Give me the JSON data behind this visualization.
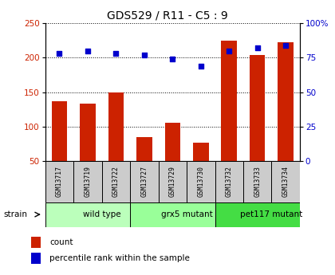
{
  "title": "GDS529 / R11 - C5 : 9",
  "samples": [
    "GSM13717",
    "GSM13719",
    "GSM13722",
    "GSM13727",
    "GSM13729",
    "GSM13730",
    "GSM13732",
    "GSM13733",
    "GSM13734"
  ],
  "counts": [
    137,
    133,
    150,
    85,
    105,
    76,
    225,
    204,
    222
  ],
  "percentile_ranks": [
    78,
    80,
    78,
    77,
    74,
    69,
    80,
    82,
    84
  ],
  "groups": [
    {
      "label": "wild type",
      "start": 0,
      "end": 3,
      "color": "#bbffbb"
    },
    {
      "label": "grx5 mutant",
      "start": 3,
      "end": 6,
      "color": "#99ff99"
    },
    {
      "label": "pet117 mutant",
      "start": 6,
      "end": 9,
      "color": "#44dd44"
    }
  ],
  "ylim_left": [
    50,
    250
  ],
  "ylim_right": [
    0,
    100
  ],
  "bar_color": "#cc2200",
  "dot_color": "#0000cc",
  "yticks_left": [
    50,
    100,
    150,
    200,
    250
  ],
  "yticks_right": [
    0,
    25,
    50,
    75,
    100
  ],
  "ytick_labels_right": [
    "0",
    "25",
    "50",
    "75",
    "100%"
  ],
  "bar_bottom": 50,
  "legend_count_label": "count",
  "legend_pct_label": "percentile rank within the sample",
  "strain_label": "strain",
  "sample_box_color": "#cccccc",
  "grid_color": "black",
  "grid_style": "dotted"
}
